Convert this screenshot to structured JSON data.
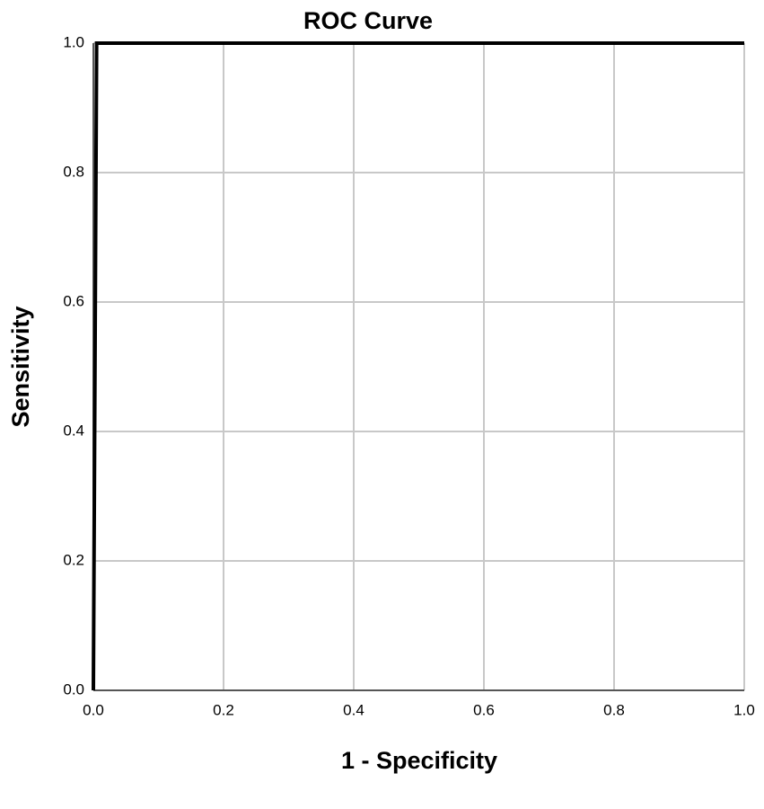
{
  "chart_data": {
    "type": "line",
    "title": "ROC Curve",
    "x_label": "1 - Specificity",
    "y_label": "Sensitivity",
    "x": [
      0,
      0.005,
      1
    ],
    "series": [
      {
        "color": "#000000",
        "values": [
          0,
          1,
          1
        ]
      }
    ],
    "xlim": [
      0,
      1
    ],
    "ylim": [
      0,
      1
    ],
    "xticks": [
      {
        "value": 0,
        "label": "0.0"
      },
      0.2,
      0.4,
      0.6,
      0.8,
      {
        "value": 1,
        "label": "1.0"
      }
    ],
    "yticks": [
      {
        "value": 0,
        "label": "0.0"
      },
      0.2,
      0.4,
      0.6,
      0.8,
      {
        "value": 1,
        "label": "1.0"
      }
    ],
    "grid": true
  }
}
